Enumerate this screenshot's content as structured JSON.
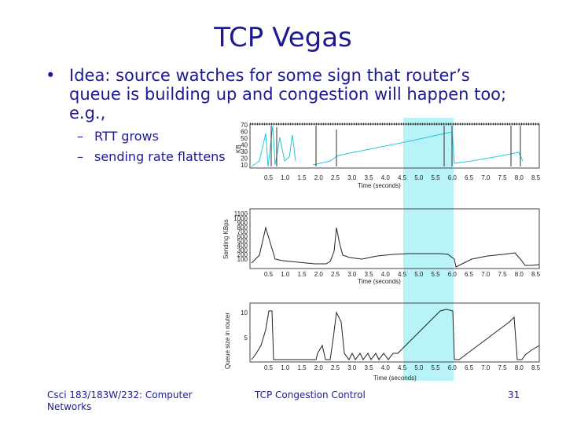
{
  "slide": {
    "title": "TCP Vegas",
    "bullet": "Idea: source watches for some sign that router’s queue is building up and congestion will happen too; e.g.,",
    "sub_bullets": [
      "RTT grows",
      "sending rate flattens"
    ],
    "footer_left": "Csci 183/183W/232: Computer Networks",
    "footer_center": "TCP Congestion Control",
    "page_number": "31"
  },
  "colors": {
    "text": "#1b1b8f",
    "highlight": "#b8f4f7",
    "line_cyan": "#25c6d8"
  },
  "chart_data": [
    {
      "type": "line",
      "ylabel": "KB",
      "xlabel": "Time (seconds)",
      "yticks": [
        "70",
        "60",
        "50",
        "40",
        "30",
        "20",
        "10"
      ],
      "xticks": [
        "0.5",
        "1.0",
        "1.5",
        "2.0",
        "2.5",
        "3.0",
        "3.5",
        "4.0",
        "4.5",
        "5.0",
        "5.5",
        "6.0",
        "6.5",
        "7.0",
        "7.5",
        "8.0",
        "8.5"
      ]
    },
    {
      "type": "line",
      "ylabel": "Sending KBps",
      "xlabel": "Time (seconds)",
      "yticks": [
        "1100",
        "1000",
        "900",
        "800",
        "700",
        "600",
        "500",
        "400",
        "300",
        "200",
        "100"
      ],
      "xticks": [
        "0.5",
        "1.0",
        "1.5",
        "2.0",
        "2.5",
        "3.0",
        "3.5",
        "4.0",
        "4.5",
        "5.0",
        "5.5",
        "6.0",
        "6.5",
        "7.0",
        "7.5",
        "8.0",
        "8.5"
      ]
    },
    {
      "type": "line",
      "ylabel": "Queue size in router",
      "xlabel": "Time (seconds)",
      "yticks": [
        "10",
        "5"
      ],
      "xticks": [
        "0.5",
        "1.0",
        "1.5",
        "2.0",
        "2.5",
        "3.0",
        "3.5",
        "4.0",
        "4.5",
        "5.0",
        "5.5",
        "6.0",
        "6.5",
        "7.0",
        "7.5",
        "8.0",
        "8.5"
      ]
    }
  ]
}
